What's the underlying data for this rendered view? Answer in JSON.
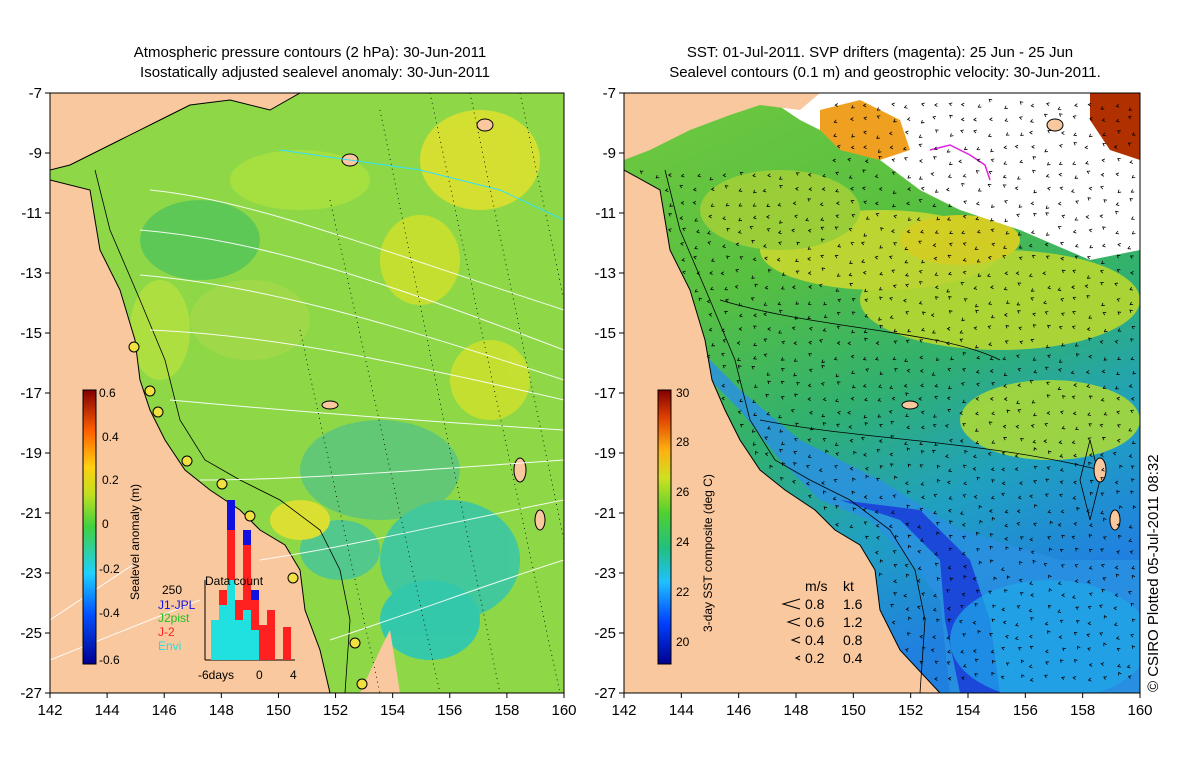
{
  "left_panel": {
    "title_line1": "Atmospheric pressure contours (2 hPa): 30-Jun-2011",
    "title_line2": "Isostatically adjusted sealevel anomaly: 30-Jun-2011",
    "colorbar": {
      "label": "Sealevel anomaly (m)",
      "ticks": [
        "0.6",
        "0.4",
        "0.2",
        "0",
        "-0.2",
        "-0.4",
        "-0.6"
      ],
      "range": [
        -0.6,
        0.6
      ]
    },
    "data_count": {
      "title": "Data count",
      "ymax_label": "250",
      "x_labels": [
        "-6days",
        "0",
        "4"
      ],
      "legend": [
        {
          "label": "J1-JPL",
          "color": "#1010e0"
        },
        {
          "label": "J2pist",
          "color": "#20c020"
        },
        {
          "label": "J-2",
          "color": "#ff2020"
        },
        {
          "label": "Envi",
          "color": "#20e0e0"
        }
      ]
    }
  },
  "right_panel": {
    "title_line1": "SST: 01-Jul-2011. SVP drifters (magenta): 25 Jun - 25 Jun",
    "title_line2": "Sealevel contours (0.1 m) and geostrophic velocity: 30-Jun-2011.",
    "colorbar": {
      "label": "3-day SST composite (deg C)",
      "ticks": [
        "30",
        "28",
        "26",
        "24",
        "22",
        "20"
      ],
      "range": [
        19,
        30
      ]
    },
    "velocity_legend": {
      "header_ms": "m/s",
      "header_kt": "kt",
      "rows": [
        {
          "ms": "0.8",
          "kt": "1.6"
        },
        {
          "ms": "0.6",
          "kt": "1.2"
        },
        {
          "ms": "0.4",
          "kt": "0.8"
        },
        {
          "ms": "0.2",
          "kt": "0.4"
        }
      ]
    }
  },
  "axes": {
    "y_ticks": [
      "-7",
      "-9",
      "-11",
      "-13",
      "-15",
      "-17",
      "-19",
      "-21",
      "-23",
      "-25",
      "-27"
    ],
    "x_ticks": [
      "142",
      "144",
      "146",
      "148",
      "150",
      "152",
      "154",
      "156",
      "158",
      "160"
    ],
    "lon_range": [
      142,
      160
    ],
    "lat_range": [
      -27,
      -7
    ]
  },
  "credit": "© CSIRO Plotted 05-Jul-2011 08:32",
  "colors": {
    "land": "#f9c89e",
    "sla_mid": "#8ed848",
    "ocean_deep_sst": "#2a5fe0",
    "magenta": "#e020e0"
  }
}
